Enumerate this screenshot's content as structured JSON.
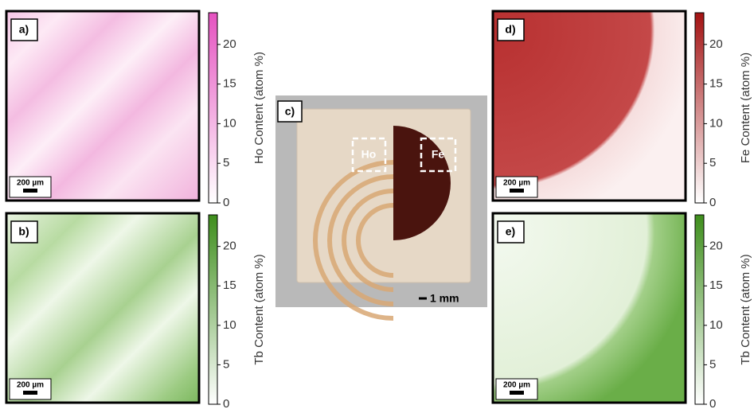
{
  "panels": [
    {
      "label": "a)",
      "scale_bar": "200 µm",
      "colorbar": {
        "title": "Ho Content (atom %)",
        "ticks": [
          0,
          5,
          10,
          15,
          20
        ],
        "lim": [
          0,
          24
        ],
        "color": "#e552c0"
      }
    },
    {
      "label": "b)",
      "scale_bar": "200 µm",
      "colorbar": {
        "title": "Tb Content (atom %)",
        "ticks": [
          0,
          5,
          10,
          15,
          20
        ],
        "lim": [
          0,
          24
        ],
        "color": "#3e8e1c"
      }
    },
    {
      "label": "d)",
      "scale_bar": "200 µm",
      "colorbar": {
        "title": "Fe Content (atom %)",
        "ticks": [
          0,
          5,
          10,
          15,
          20
        ],
        "lim": [
          0,
          24
        ],
        "color": "#a31212"
      }
    },
    {
      "label": "e)",
      "scale_bar": "200 µm",
      "colorbar": {
        "title": "Tb Content (atom %)",
        "ticks": [
          0,
          5,
          10,
          15,
          20
        ],
        "lim": [
          0,
          24
        ],
        "color": "#3e8e1c"
      }
    }
  ],
  "photo": {
    "label": "c)",
    "boxes": [
      "Ho",
      "Fe"
    ],
    "scale_bar": "1 mm"
  }
}
